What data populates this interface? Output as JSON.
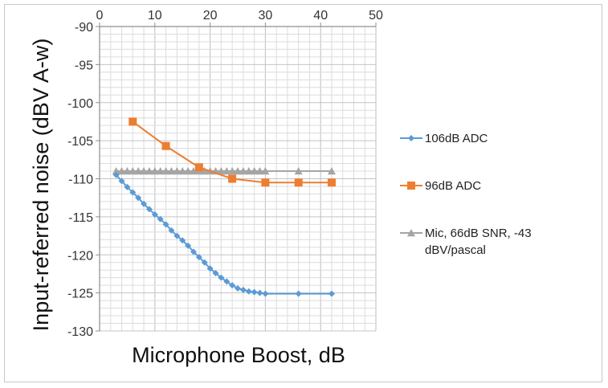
{
  "chart_data": {
    "type": "line",
    "title": "",
    "xlabel": "Microphone Boost, dB",
    "ylabel": "Input-referred noise (dBV A-w)",
    "xlim": [
      0,
      50
    ],
    "ylim": [
      -130,
      -90
    ],
    "x_ticks": [
      0,
      10,
      20,
      30,
      40,
      50
    ],
    "x_tick_labels": [
      "0",
      "10",
      "20",
      "30",
      "40",
      "50"
    ],
    "y_ticks": [
      -90,
      -95,
      -100,
      -105,
      -110,
      -115,
      -120,
      -125,
      -130
    ],
    "y_tick_labels": [
      "-90",
      "-95",
      "-100",
      "-105",
      "-110",
      "-115",
      "-120",
      "-125",
      "-130"
    ],
    "x_axis_position": "top",
    "grid": true,
    "legend_position": "right",
    "series": [
      {
        "name": "106dB ADC",
        "color": "#5b9bd5",
        "marker": "diamond",
        "x": [
          3,
          4,
          5,
          6,
          7,
          8,
          9,
          10,
          11,
          12,
          13,
          14,
          15,
          16,
          17,
          18,
          19,
          20,
          21,
          22,
          23,
          24,
          25,
          26,
          27,
          28,
          29,
          30,
          36,
          42
        ],
        "y": [
          -109.5,
          -110.3,
          -111.1,
          -111.8,
          -112.5,
          -113.3,
          -114.0,
          -114.7,
          -115.3,
          -116.0,
          -116.8,
          -117.5,
          -118.1,
          -118.8,
          -119.6,
          -120.3,
          -121.0,
          -121.8,
          -122.4,
          -123.0,
          -123.5,
          -124.0,
          -124.4,
          -124.6,
          -124.8,
          -124.9,
          -125.0,
          -125.1,
          -125.1,
          -125.1
        ]
      },
      {
        "name": "96dB ADC",
        "color": "#ed7d31",
        "marker": "square",
        "x": [
          6,
          12,
          18,
          24,
          30,
          36,
          42
        ],
        "y": [
          -102.5,
          -105.7,
          -108.5,
          -110.0,
          -110.5,
          -110.5,
          -110.5
        ]
      },
      {
        "name": "Mic, 66dB SNR, -43 dBV/pascal",
        "legend_lines": [
          "Mic, 66dB SNR, -43",
          "dBV/pascal"
        ],
        "color": "#a5a5a5",
        "marker": "triangle",
        "x": [
          3,
          4,
          5,
          6,
          7,
          8,
          9,
          10,
          11,
          12,
          13,
          14,
          15,
          16,
          17,
          18,
          19,
          20,
          21,
          22,
          23,
          24,
          25,
          26,
          27,
          28,
          29,
          30,
          36,
          42
        ],
        "y": [
          -109.0,
          -109.0,
          -109.0,
          -109.0,
          -109.0,
          -109.0,
          -109.0,
          -109.0,
          -109.0,
          -109.0,
          -109.0,
          -109.0,
          -109.0,
          -109.0,
          -109.0,
          -109.0,
          -109.0,
          -109.0,
          -109.0,
          -109.0,
          -109.0,
          -109.0,
          -109.0,
          -109.0,
          -109.0,
          -109.0,
          -109.0,
          -109.0,
          -109.0,
          -109.0
        ]
      }
    ]
  }
}
